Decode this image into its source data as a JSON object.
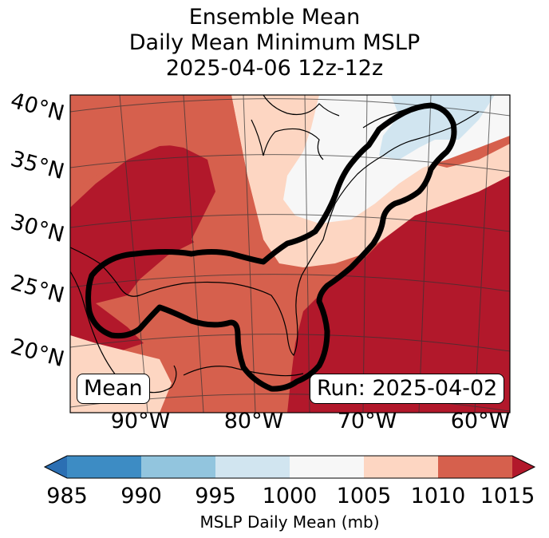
{
  "chart_data": {
    "type": "heatmap",
    "title_lines": [
      "Ensemble Mean",
      "Daily Mean Minimum MSLP",
      "2025-04-06 12z-12z"
    ],
    "lat_ticks": [
      "40°N",
      "35°N",
      "30°N",
      "25°N",
      "20°N"
    ],
    "lon_ticks": [
      "90°W",
      "80°W",
      "70°W",
      "60°W"
    ],
    "left_box": "Mean",
    "right_box": "Run: 2025-04-02",
    "colorbar": {
      "label": "MSLP Daily Mean (mb)",
      "ticks": [
        "985",
        "990",
        "995",
        "1000",
        "1005",
        "1010",
        "1015"
      ],
      "tick_values": [
        985,
        990,
        995,
        1000,
        1005,
        1010,
        1015
      ],
      "colors": [
        "#2b6fb3",
        "#3d8cc4",
        "#92c5de",
        "#d1e5f0",
        "#f7f7f7",
        "#fdd6c2",
        "#d6604d",
        "#b2182b"
      ],
      "extend": "both"
    },
    "field_colors": {
      "deep": "#b2182b",
      "mid": "#d6604d",
      "light": "#fdd6c2",
      "white": "#f7f7f7",
      "blue": "#d1e5f0"
    },
    "contour_color": "#000000"
  }
}
